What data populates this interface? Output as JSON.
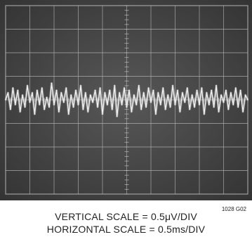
{
  "figure_id": "1028 G02",
  "captions": {
    "vertical": "VERTICAL SCALE = 0.5μV/DIV",
    "horizontal": "HORIZONTAL SCALE = 0.5ms/DIV"
  },
  "colors": {
    "screen_background": "#4a4a4a",
    "graticule": "#b8b8b8",
    "trace": "#f2f2f2"
  },
  "chart_data": {
    "type": "line",
    "title": "",
    "xlabel": "",
    "ylabel": "",
    "x_divisions": 10,
    "y_divisions": 8,
    "xlim": [
      0,
      10
    ],
    "ylim": [
      -4,
      4
    ],
    "grid": true,
    "series": [
      {
        "x": [
          0,
          0.1,
          0.2,
          0.3,
          0.4,
          0.5,
          0.6,
          0.7,
          0.8,
          0.9,
          1,
          1.1,
          1.2,
          1.3,
          1.4,
          1.5,
          1.6,
          1.7,
          1.8,
          1.9,
          2,
          2.1,
          2.2,
          2.3,
          2.4,
          2.5,
          2.6,
          2.7,
          2.8,
          2.9,
          3,
          3.1,
          3.2,
          3.3,
          3.4,
          3.5,
          3.6,
          3.7,
          3.8,
          3.9,
          4,
          4.1,
          4.2,
          4.3,
          4.4,
          4.5,
          4.6,
          4.7,
          4.8,
          4.9,
          5,
          5.1,
          5.2,
          5.3,
          5.4,
          5.5,
          5.6,
          5.7,
          5.8,
          5.9,
          6,
          6.1,
          6.2,
          6.3,
          6.4,
          6.5,
          6.6,
          6.7,
          6.8,
          6.9,
          7,
          7.1,
          7.2,
          7.3,
          7.4,
          7.5,
          7.6,
          7.7,
          7.8,
          7.9,
          8,
          8.1,
          8.2,
          8.3,
          8.4,
          8.5,
          8.6,
          8.7,
          8.8,
          8.9,
          9,
          9.1,
          9.2,
          9.3,
          9.4,
          9.5,
          9.6,
          9.7,
          9.8,
          9.9,
          10
        ],
        "y": [
          0.0,
          0.3,
          -0.4,
          0.5,
          -0.2,
          0.4,
          -0.5,
          0.2,
          -0.3,
          0.6,
          -0.1,
          0.3,
          -0.6,
          0.4,
          -0.2,
          0.5,
          -0.4,
          0.1,
          -0.3,
          0.7,
          -0.2,
          0.4,
          -0.5,
          0.3,
          -0.1,
          0.5,
          -0.6,
          0.2,
          -0.3,
          0.4,
          -0.2,
          0.6,
          -0.4,
          0.3,
          -0.5,
          0.2,
          -0.1,
          0.4,
          -0.3,
          0.5,
          -0.6,
          0.3,
          -0.2,
          0.4,
          -0.4,
          0.6,
          -0.7,
          0.3,
          -0.2,
          0.5,
          -0.3,
          0.4,
          -0.5,
          0.2,
          -0.2,
          0.6,
          -0.4,
          0.3,
          -0.3,
          0.5,
          -0.1,
          0.4,
          -0.6,
          0.3,
          -0.2,
          0.5,
          -0.4,
          0.2,
          -0.3,
          0.6,
          -0.2,
          0.4,
          -0.5,
          0.3,
          -0.1,
          0.5,
          -0.4,
          0.2,
          -0.3,
          0.4,
          -0.2,
          0.5,
          -0.6,
          0.3,
          -0.2,
          0.4,
          -0.3,
          0.6,
          -0.5,
          0.2,
          -0.1,
          0.4,
          -0.4,
          0.3,
          -0.2,
          0.5,
          -0.3,
          0.4,
          -0.5,
          0.2,
          0.0
        ]
      }
    ]
  }
}
